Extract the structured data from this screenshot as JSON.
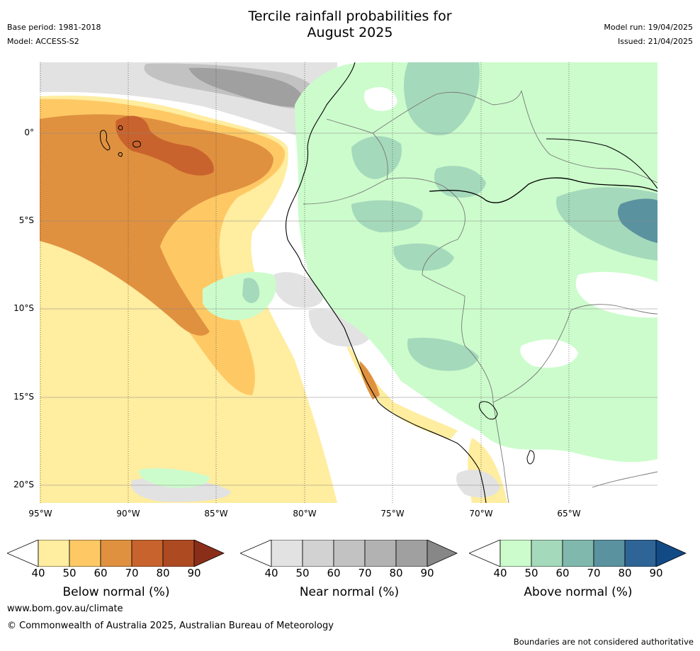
{
  "header": {
    "title_line1": "Tercile rainfall probabilities for",
    "title_line2": "August 2025",
    "base_period": "Base period: 1981-2018",
    "model": "Model: ACCESS-S2",
    "model_run": "Model run: 19/04/2025",
    "issued": "Issued: 21/04/2025"
  },
  "map": {
    "lat_labels": [
      "0°",
      "5°S",
      "10°S",
      "15°S",
      "20°S"
    ],
    "lon_labels": [
      "95°W",
      "90°W",
      "85°W",
      "80°W",
      "75°W",
      "70°W",
      "65°W"
    ],
    "lat_values": [
      0,
      -5,
      -10,
      -15,
      -20
    ],
    "lon_values": [
      -95,
      -90,
      -85,
      -80,
      -75,
      -70,
      -65
    ],
    "extent": {
      "lon_min": -95,
      "lon_max": -60,
      "lat_min": -21,
      "lat_max": 4
    }
  },
  "legends": [
    {
      "caption": "Below normal (%)",
      "ticks": [
        "40",
        "50",
        "60",
        "70",
        "80",
        "90"
      ],
      "colors": [
        "#ffeda0",
        "#fec965",
        "#e0913f",
        "#c9632d",
        "#ad4a22",
        "#8a2e1a"
      ]
    },
    {
      "caption": "Near normal (%)",
      "ticks": [
        "40",
        "50",
        "60",
        "70",
        "80",
        "90"
      ],
      "colors": [
        "#e2e2e2",
        "#d2d2d2",
        "#c2c2c2",
        "#b2b2b2",
        "#a0a0a0",
        "#878787"
      ]
    },
    {
      "caption": "Above normal (%)",
      "ticks": [
        "40",
        "50",
        "60",
        "70",
        "80",
        "90"
      ],
      "colors": [
        "#ccfccc",
        "#a5d9bb",
        "#80b8ad",
        "#5a92a0",
        "#2f6496",
        "#124a85"
      ]
    }
  ],
  "footer": {
    "website": "www.bom.gov.au/climate",
    "copyright": "© Commonwealth of Australia 2025, Australian Bureau of Meteorology",
    "disclaimer": "Boundaries are not considered authoritative"
  }
}
